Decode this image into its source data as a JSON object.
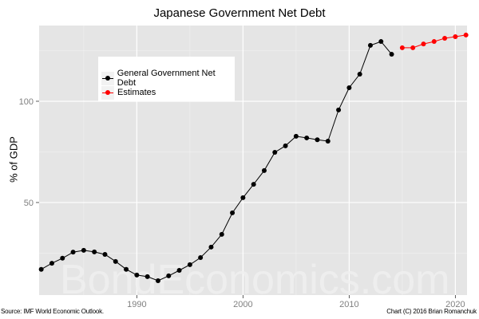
{
  "chart_data": {
    "type": "line",
    "title": "Japanese Government Net Debt",
    "xlabel": "",
    "ylabel": "% of GDP",
    "xlim": [
      1980.8,
      2021.1
    ],
    "ylim": [
      4.3,
      137.4
    ],
    "x_ticks": [
      1990,
      2000,
      2010,
      2020
    ],
    "y_ticks": [
      50,
      100
    ],
    "x_minor_grid": [
      1985,
      1995,
      2005,
      2015
    ],
    "y_minor_grid": [
      25,
      75,
      125
    ],
    "grid": true,
    "legend_position": "inside-top-left",
    "series": [
      {
        "name": "General Government Net Debt",
        "color": "#000000",
        "x": [
          1981,
          1982,
          1983,
          1984,
          1985,
          1986,
          1987,
          1988,
          1989,
          1990,
          1991,
          1992,
          1993,
          1994,
          1995,
          1996,
          1997,
          1998,
          1999,
          2000,
          2001,
          2002,
          2003,
          2004,
          2005,
          2006,
          2007,
          2008,
          2009,
          2010,
          2011,
          2012,
          2013,
          2014
        ],
        "values": [
          17.0,
          20.0,
          22.5,
          25.5,
          26.4,
          25.6,
          24.4,
          20.9,
          17.0,
          14.2,
          13.4,
          11.4,
          13.8,
          16.5,
          19.3,
          22.8,
          28.0,
          34.3,
          44.9,
          52.4,
          59.0,
          65.8,
          74.8,
          78.0,
          82.7,
          81.9,
          81.0,
          80.3,
          95.7,
          106.7,
          113.4,
          127.6,
          129.5,
          123.2
        ]
      },
      {
        "name": "Estimates",
        "color": "#ff0000",
        "x": [
          2015,
          2016,
          2017,
          2018,
          2019,
          2020,
          2021
        ],
        "values": [
          126.4,
          126.4,
          128.3,
          129.5,
          131.1,
          131.9,
          132.7
        ]
      }
    ]
  },
  "labels": {
    "title": "Japanese Government Net Debt",
    "ylabel": "% of GDP",
    "source": "Source: IMF World Economic Outlook.",
    "credit": "Chart (C) 2016 Brian Romanchuk",
    "watermark": "BondEconomics.com"
  },
  "legend": {
    "items": [
      {
        "label": "General Government Net Debt",
        "color": "#000000"
      },
      {
        "label": "Estimates",
        "color": "#ff0000"
      }
    ]
  },
  "colors": {
    "panel_bg": "#e5e5e5",
    "grid_major": "#ffffff",
    "grid_minor": "#f2f2f2",
    "tick_label": "#7f7f7f",
    "watermark": "#f0f0f0"
  }
}
